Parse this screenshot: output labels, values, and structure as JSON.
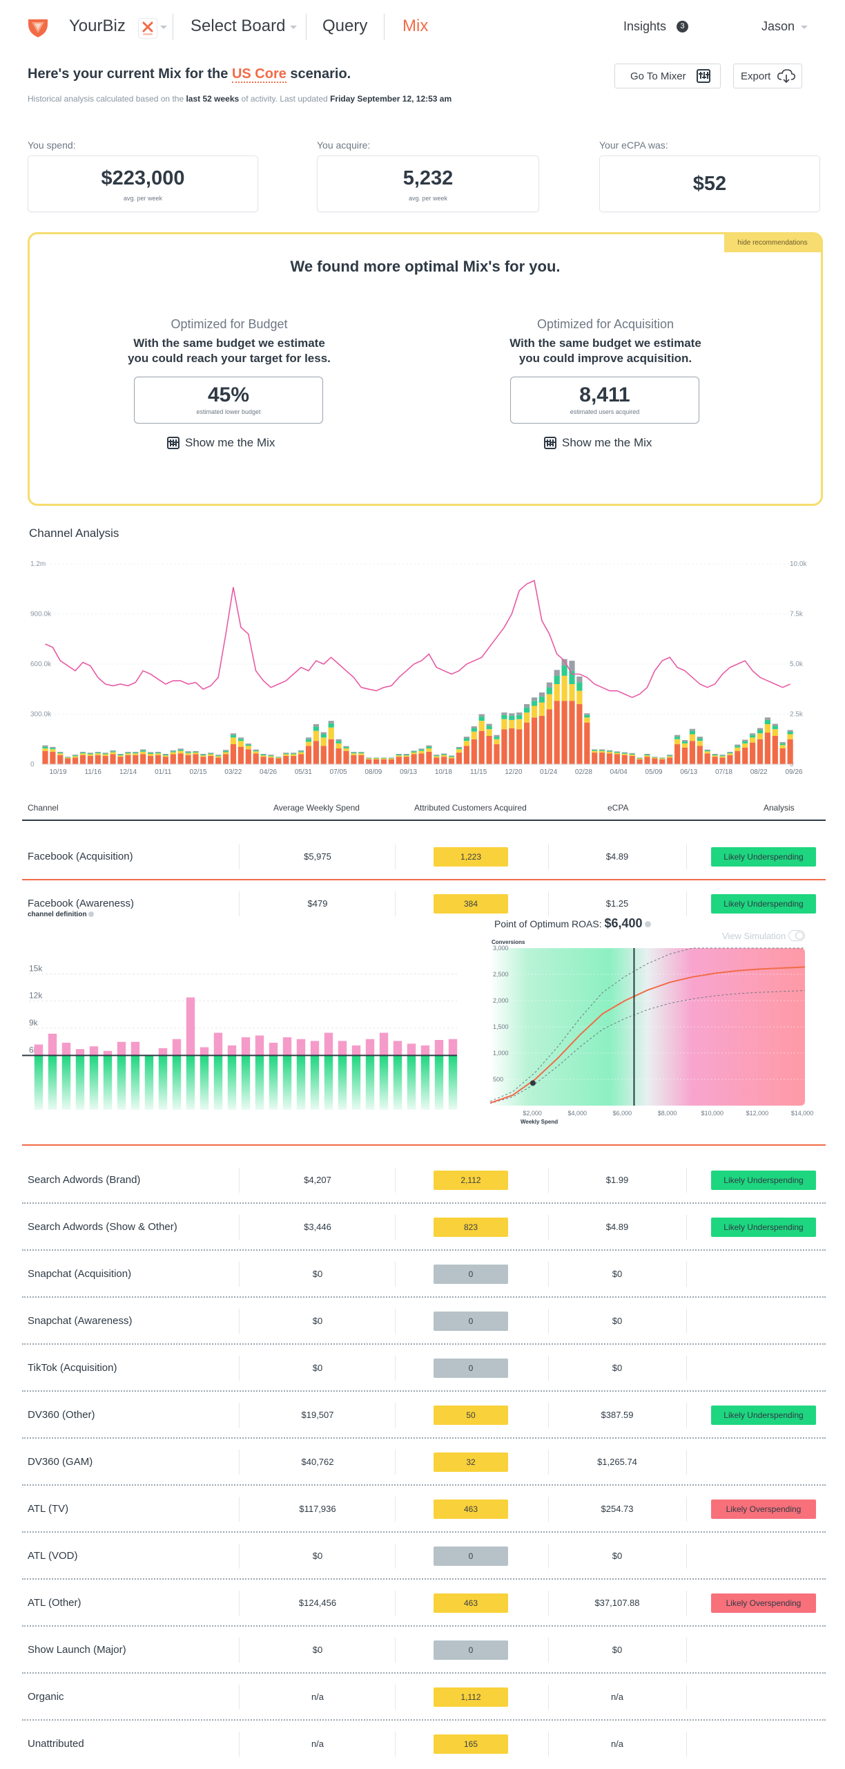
{
  "header": {
    "brand": "YourBiz",
    "nav": [
      "Select Board",
      "Query",
      "Mix"
    ],
    "insights_label": "Insights",
    "insights_count": "3",
    "user": "Jason"
  },
  "summary": {
    "title_prefix": "Here's your current Mix for the ",
    "scenario": "US Core",
    "title_suffix": " scenario.",
    "sub_prefix": "Historical analysis calculated based on the ",
    "sub_period": "last 52 weeks",
    "sub_mid": " of activity. Last updated ",
    "sub_date": "Friday September 12, 12:53 am",
    "mixer_btn": "Go To Mixer",
    "export_btn": "Export"
  },
  "stats": [
    {
      "label": "You spend:",
      "value": "$223,000",
      "sub": "avg. per week"
    },
    {
      "label": "You acquire:",
      "value": "5,232",
      "sub": "avg. per week"
    },
    {
      "label": "Your eCPA was:",
      "value": "$52",
      "sub": ""
    }
  ],
  "recommendation": {
    "hide": "hide recommendations",
    "heading": "We found more optimal Mix's for you.",
    "options": [
      {
        "title": "Optimized for Budget",
        "desc1": "With the same budget we estimate",
        "desc2": "you could reach your target for less.",
        "value": "45%",
        "sub": "estimated lower budget",
        "cta": "Show me the Mix"
      },
      {
        "title": "Optimized for Acquisition",
        "desc1": "With the same budget we estimate",
        "desc2": "you could improve acquisition.",
        "value": "8,411",
        "sub": "estimated users acquired",
        "cta": "Show me the Mix"
      }
    ]
  },
  "channel_chart": {
    "title": "Channel Analysis",
    "y_left_ticks": [
      "0",
      "300.0k",
      "600.0k",
      "900.0k",
      "1.2m"
    ],
    "y_right_ticks": [
      "0",
      "2.5k",
      "5.0k",
      "7.5k",
      "10.0k"
    ],
    "x_ticks": [
      "10/19",
      "11/16",
      "12/14",
      "01/11",
      "02/15",
      "03/22",
      "04/26",
      "05/31",
      "07/05",
      "08/09",
      "09/13",
      "10/18",
      "11/15",
      "12/20",
      "01/24",
      "02/28",
      "04/04",
      "05/09",
      "06/13",
      "07/18",
      "08/22",
      "09/26"
    ]
  },
  "chart_data": [
    {
      "type": "bar",
      "stacked": true,
      "title": "Channel Analysis",
      "ylim_left": [
        0,
        1200000
      ],
      "ylim_right": [
        0,
        10000
      ],
      "n_weeks": 100,
      "series": [
        {
          "color": "#f26b47",
          "values": [
            80,
            75,
            55,
            35,
            40,
            55,
            50,
            55,
            50,
            60,
            45,
            55,
            55,
            60,
            50,
            55,
            45,
            60,
            65,
            55,
            60,
            45,
            50,
            40,
            60,
            120,
            105,
            90,
            65,
            45,
            40,
            35,
            50,
            50,
            60,
            110,
            140,
            110,
            150,
            95,
            80,
            55,
            55,
            30,
            30,
            30,
            30,
            45,
            45,
            60,
            65,
            75,
            40,
            45,
            35,
            70,
            110,
            150,
            200,
            170,
            120,
            210,
            215,
            210,
            250,
            280,
            290,
            330,
            380,
            380,
            380,
            360,
            250,
            70,
            70,
            65,
            60,
            55,
            50,
            30,
            45,
            35,
            30,
            40,
            120,
            100,
            140,
            110,
            65,
            45,
            40,
            55,
            80,
            100,
            130,
            150,
            190,
            170,
            95,
            150
          ]
        },
        {
          "color": "#f9d13a",
          "values": [
            15,
            15,
            10,
            5,
            8,
            10,
            10,
            10,
            10,
            12,
            8,
            10,
            10,
            15,
            12,
            10,
            8,
            12,
            15,
            12,
            10,
            8,
            10,
            8,
            12,
            40,
            35,
            20,
            12,
            8,
            8,
            5,
            10,
            10,
            12,
            25,
            60,
            50,
            70,
            30,
            15,
            10,
            10,
            5,
            5,
            5,
            5,
            8,
            8,
            10,
            15,
            20,
            8,
            10,
            8,
            20,
            30,
            45,
            60,
            40,
            30,
            60,
            50,
            60,
            60,
            70,
            80,
            90,
            100,
            150,
            100,
            80,
            30,
            10,
            10,
            10,
            8,
            8,
            8,
            5,
            8,
            5,
            5,
            8,
            30,
            25,
            40,
            30,
            12,
            8,
            8,
            10,
            20,
            25,
            30,
            35,
            50,
            40,
            20,
            30
          ]
        },
        {
          "color": "#2ecc8f",
          "values": [
            10,
            8,
            5,
            3,
            5,
            5,
            5,
            5,
            5,
            6,
            5,
            5,
            5,
            8,
            6,
            5,
            5,
            6,
            8,
            6,
            5,
            5,
            5,
            5,
            8,
            15,
            12,
            8,
            6,
            5,
            5,
            3,
            5,
            5,
            6,
            15,
            25,
            20,
            25,
            15,
            8,
            5,
            5,
            3,
            3,
            3,
            3,
            5,
            5,
            6,
            8,
            10,
            5,
            5,
            5,
            8,
            15,
            20,
            25,
            20,
            15,
            25,
            25,
            25,
            30,
            30,
            35,
            40,
            50,
            60,
            80,
            50,
            15,
            5,
            5,
            5,
            5,
            5,
            5,
            3,
            5,
            3,
            3,
            5,
            15,
            12,
            20,
            15,
            6,
            5,
            5,
            5,
            10,
            12,
            15,
            20,
            25,
            20,
            10,
            15
          ]
        },
        {
          "color": "#9aa0a6",
          "values": [
            8,
            6,
            4,
            2,
            4,
            4,
            4,
            4,
            4,
            5,
            4,
            4,
            4,
            6,
            5,
            4,
            4,
            5,
            6,
            5,
            4,
            4,
            4,
            4,
            6,
            10,
            8,
            6,
            5,
            4,
            4,
            2,
            4,
            4,
            5,
            10,
            15,
            12,
            15,
            10,
            6,
            4,
            4,
            2,
            2,
            2,
            2,
            4,
            4,
            5,
            6,
            8,
            4,
            4,
            4,
            6,
            10,
            12,
            15,
            12,
            10,
            15,
            15,
            15,
            20,
            20,
            25,
            30,
            35,
            40,
            60,
            35,
            10,
            4,
            4,
            4,
            4,
            4,
            4,
            2,
            4,
            2,
            2,
            4,
            10,
            8,
            12,
            10,
            5,
            4,
            4,
            4,
            8,
            10,
            10,
            12,
            15,
            12,
            8,
            10
          ]
        }
      ],
      "line": {
        "name": "",
        "color": "#e85aa4",
        "values": [
          720,
          700,
          620,
          590,
          560,
          610,
          590,
          520,
          480,
          470,
          480,
          470,
          490,
          560,
          540,
          510,
          480,
          500,
          500,
          480,
          490,
          450,
          470,
          520,
          780,
          1060,
          820,
          780,
          560,
          500,
          460,
          480,
          500,
          540,
          580,
          560,
          620,
          600,
          640,
          600,
          560,
          520,
          460,
          450,
          440,
          460,
          470,
          520,
          560,
          600,
          620,
          660,
          580,
          560,
          540,
          560,
          600,
          620,
          640,
          700,
          760,
          820,
          900,
          1040,
          1080,
          1100,
          860,
          780,
          660,
          620,
          540,
          540,
          520,
          480,
          460,
          440,
          440,
          420,
          400,
          420,
          460,
          560,
          620,
          640,
          580,
          560,
          520,
          480,
          460,
          480,
          540,
          580,
          600,
          620,
          560,
          520,
          500,
          480,
          460,
          480
        ]
      }
    },
    {
      "type": "bar",
      "title": "channel definition",
      "ylim": [
        0,
        18000
      ],
      "y_ticks": [
        "6k",
        "9k",
        "12k",
        "15k"
      ],
      "threshold": 6000,
      "series": [
        {
          "name": "",
          "color": "#1ed67f",
          "values": [
            6000,
            6000,
            6000,
            6000,
            6000,
            6000,
            6000,
            6000,
            6000,
            6000,
            6000,
            6000,
            6000,
            6000,
            6000,
            6000,
            6000,
            6000,
            6000,
            6000,
            6000,
            6000,
            6000,
            6000,
            6000,
            6000,
            6000,
            6000,
            6000,
            6000,
            6000
          ]
        },
        {
          "name": "",
          "color": "#f59bc9",
          "values": [
            1200,
            2400,
            1400,
            700,
            1000,
            500,
            1500,
            1500,
            0,
            800,
            1800,
            6400,
            900,
            2500,
            1100,
            2000,
            2200,
            1400,
            2000,
            1800,
            1600,
            2500,
            1600,
            1100,
            1800,
            2500,
            1600,
            1300,
            1100,
            1700,
            1800
          ]
        }
      ]
    },
    {
      "type": "line",
      "title": "Point of Optimum ROAS:",
      "optimum_value": "$6,400",
      "toggle_label": "View Simulation",
      "ylabel": "Conversions",
      "xlabel": "Weekly Spend",
      "y_ticks": [
        "500",
        "1,000",
        "1,500",
        "2,000",
        "2,500",
        "3,000"
      ],
      "x_ticks": [
        "$2,000",
        "$4,000",
        "$6,000",
        "$8,000",
        "$10,000",
        "$12,000",
        "$14,000"
      ],
      "ylim": [
        0,
        3000
      ],
      "xlim": [
        0,
        14000
      ],
      "optimum_x": 6400,
      "current_point": [
        1900,
        430
      ],
      "series": [
        {
          "name": "",
          "x": [
            0,
            1000,
            2000,
            3000,
            4000,
            5000,
            6000,
            7000,
            8000,
            9000,
            10000,
            11000,
            12000,
            13000,
            14000
          ],
          "y": [
            50,
            200,
            500,
            900,
            1350,
            1750,
            2000,
            2200,
            2350,
            2450,
            2520,
            2570,
            2600,
            2620,
            2640
          ]
        }
      ]
    }
  ],
  "table": {
    "headers": [
      "Channel",
      "Average Weekly Spend",
      "Attributed Customers Acquired",
      "eCPA",
      "Analysis"
    ],
    "expanded_title": "channel definition",
    "rows": [
      {
        "name": "Facebook (Acquisition)",
        "spend": "$5,975",
        "acq": "1,223",
        "ecpa": "$4.89",
        "analysis": "Likely Underspending",
        "status": "under",
        "zero": false
      },
      {
        "name": "Facebook (Awareness)",
        "spend": "$479",
        "acq": "384",
        "ecpa": "$1.25",
        "analysis": "Likely Underspending",
        "status": "under",
        "zero": false
      },
      {
        "name": "Search Adwords (Brand)",
        "spend": "$4,207",
        "acq": "2,112",
        "ecpa": "$1.99",
        "analysis": "Likely Underspending",
        "status": "under",
        "zero": false
      },
      {
        "name": "Search Adwords (Show & Other)",
        "spend": "$3,446",
        "acq": "823",
        "ecpa": "$4.89",
        "analysis": "Likely Underspending",
        "status": "under",
        "zero": false
      },
      {
        "name": "Snapchat (Acquisition)",
        "spend": "$0",
        "acq": "0",
        "ecpa": "$0",
        "analysis": "",
        "status": "",
        "zero": true
      },
      {
        "name": "Snapchat (Awareness)",
        "spend": "$0",
        "acq": "0",
        "ecpa": "$0",
        "analysis": "",
        "status": "",
        "zero": true
      },
      {
        "name": "TikTok (Acquisition)",
        "spend": "$0",
        "acq": "0",
        "ecpa": "$0",
        "analysis": "",
        "status": "",
        "zero": true
      },
      {
        "name": "DV360 (Other)",
        "spend": "$19,507",
        "acq": "50",
        "ecpa": "$387.59",
        "analysis": "Likely Underspending",
        "status": "under",
        "zero": false
      },
      {
        "name": "DV360 (GAM)",
        "spend": "$40,762",
        "acq": "32",
        "ecpa": "$1,265.74",
        "analysis": "",
        "status": "",
        "zero": false
      },
      {
        "name": "ATL (TV)",
        "spend": "$117,936",
        "acq": "463",
        "ecpa": "$254.73",
        "analysis": "Likely Overspending",
        "status": "over",
        "zero": false
      },
      {
        "name": "ATL (VOD)",
        "spend": "$0",
        "acq": "0",
        "ecpa": "$0",
        "analysis": "",
        "status": "",
        "zero": true
      },
      {
        "name": "ATL (Other)",
        "spend": "$124,456",
        "acq": "463",
        "ecpa": "$37,107.88",
        "analysis": "Likely Overspending",
        "status": "over",
        "zero": false
      },
      {
        "name": "Show Launch (Major)",
        "spend": "$0",
        "acq": "0",
        "ecpa": "$0",
        "analysis": "",
        "status": "",
        "zero": true
      },
      {
        "name": "Organic",
        "spend": "n/a",
        "acq": "1,112",
        "ecpa": "n/a",
        "analysis": "",
        "status": "",
        "zero": false
      },
      {
        "name": "Unattributed",
        "spend": "n/a",
        "acq": "165",
        "ecpa": "n/a",
        "analysis": "",
        "status": "",
        "zero": false
      }
    ]
  }
}
